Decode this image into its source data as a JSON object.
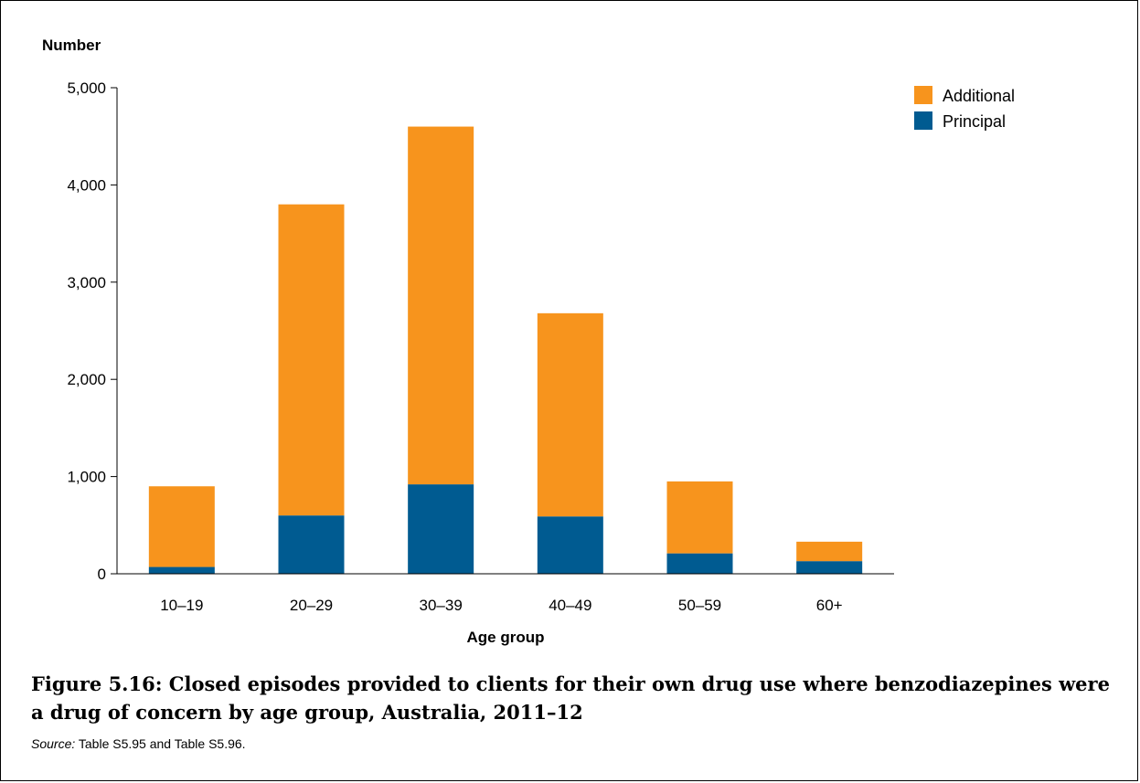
{
  "chart_data": {
    "type": "bar",
    "stacked": true,
    "categories": [
      "10–19",
      "20–29",
      "30–39",
      "40–49",
      "50–59",
      "60+"
    ],
    "series": [
      {
        "name": "Principal",
        "color": "#005b91",
        "values": [
          70,
          600,
          920,
          590,
          210,
          130
        ]
      },
      {
        "name": "Additional",
        "color": "#f7941d",
        "values": [
          830,
          3200,
          3680,
          2090,
          740,
          200
        ]
      }
    ],
    "ylabel": "Number",
    "xlabel": "Age group",
    "ylim": [
      0,
      5000
    ],
    "yticks": [
      0,
      1000,
      2000,
      3000,
      4000,
      5000
    ],
    "ytick_labels": [
      "0",
      "1,000",
      "2,000",
      "3,000",
      "4,000",
      "5,000"
    ],
    "legend": {
      "placement": "top-right",
      "entries": [
        "Additional",
        "Principal"
      ]
    },
    "grid": false
  },
  "caption": "Figure 5.16: Closed episodes provided to clients for their own drug use where benzodiazepines were a drug of concern by age group, Australia, 2011–12",
  "source": {
    "label": "Source:",
    "text": " Table S5.95 and Table S5.96."
  }
}
